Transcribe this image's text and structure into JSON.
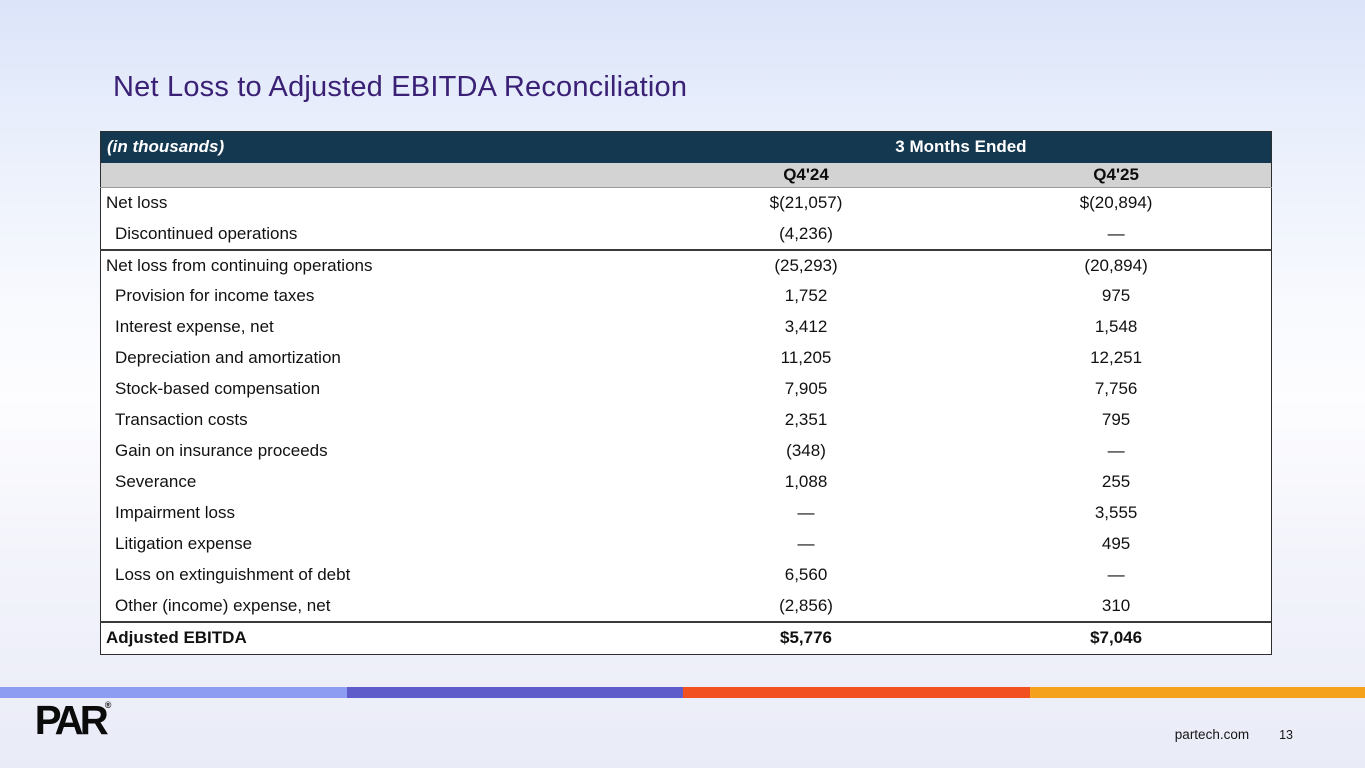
{
  "slide": {
    "title": "Net Loss to Adjusted EBITDA Reconciliation"
  },
  "table": {
    "unit_label": "(in thousands)",
    "period_header": "3 Months Ended",
    "columns": [
      "Q4'24",
      "Q4'25"
    ],
    "rows": [
      {
        "label": "Net loss",
        "q424": "$(21,057)",
        "q425": "$(20,894)",
        "indent": false,
        "bold": false,
        "top_border": false
      },
      {
        "label": "Discontinued operations",
        "q424": "(4,236)",
        "q425": "—",
        "indent": true,
        "bold": false,
        "top_border": false
      },
      {
        "label": "Net loss from continuing operations",
        "q424": "(25,293)",
        "q425": "(20,894)",
        "indent": false,
        "bold": false,
        "top_border": true
      },
      {
        "label": "Provision for income taxes",
        "q424": "1,752",
        "q425": "975",
        "indent": true,
        "bold": false,
        "top_border": false
      },
      {
        "label": "Interest expense, net",
        "q424": "3,412",
        "q425": "1,548",
        "indent": true,
        "bold": false,
        "top_border": false
      },
      {
        "label": "Depreciation and amortization",
        "q424": "11,205",
        "q425": "12,251",
        "indent": true,
        "bold": false,
        "top_border": false
      },
      {
        "label": "Stock-based compensation",
        "q424": "7,905",
        "q425": "7,756",
        "indent": true,
        "bold": false,
        "top_border": false
      },
      {
        "label": "Transaction costs",
        "q424": "2,351",
        "q425": "795",
        "indent": true,
        "bold": false,
        "top_border": false
      },
      {
        "label": "Gain on insurance proceeds",
        "q424": "(348)",
        "q425": "—",
        "indent": true,
        "bold": false,
        "top_border": false
      },
      {
        "label": "Severance",
        "q424": "1,088",
        "q425": "255",
        "indent": true,
        "bold": false,
        "top_border": false
      },
      {
        "label": "Impairment loss",
        "q424": "—",
        "q425": "3,555",
        "indent": true,
        "bold": false,
        "top_border": false
      },
      {
        "label": "Litigation expense",
        "q424": "—",
        "q425": "495",
        "indent": true,
        "bold": false,
        "top_border": false
      },
      {
        "label": "Loss on extinguishment of debt",
        "q424": "6,560",
        "q425": "—",
        "indent": true,
        "bold": false,
        "top_border": false
      },
      {
        "label": "Other (income) expense, net",
        "q424": "(2,856)",
        "q425": "310",
        "indent": true,
        "bold": false,
        "top_border": false
      },
      {
        "label": "Adjusted EBITDA",
        "q424": "$5,776",
        "q425": "$7,046",
        "indent": false,
        "bold": true,
        "top_border": true
      }
    ]
  },
  "footer": {
    "logo_text": "PAR",
    "logo_mark": "®",
    "website": "partech.com",
    "page_number": "13"
  },
  "colors": {
    "title_purple": "#3B2175",
    "header_navy": "#143850",
    "header_gray": "#d3d3d3",
    "logo_black": "#0b0b0b",
    "stripe": [
      "#8C9DF2",
      "#5E5BCB",
      "#F3501F",
      "#F5A11C"
    ]
  }
}
